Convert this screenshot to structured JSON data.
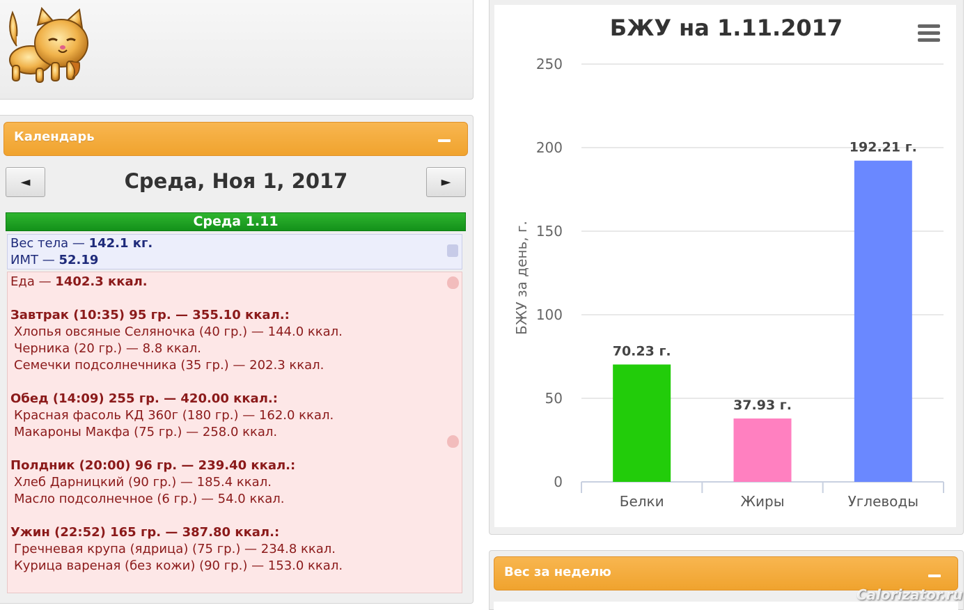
{
  "calendar": {
    "title": "Календарь",
    "prev_label": "◄",
    "next_label": "►",
    "date_title": "Среда, Ноя 1, 2017",
    "day_label": "Среда 1.11"
  },
  "body": {
    "weight_prefix": "Вес тела — ",
    "weight_value": "142.1 кг.",
    "bmi_prefix": "ИМТ — ",
    "bmi_value": "52.19"
  },
  "food": {
    "total_prefix": "Еда — ",
    "total_value": "1402.3 ккал.",
    "meals": [
      {
        "heading": "Завтрак (10:35) 95 гр. — 355.10 ккал.:",
        "items": [
          "Хлопья овсяные Селяночка (40 гр.) — 144.0 ккал.",
          "Черника (20 гр.) — 8.8 ккал.",
          "Семечки подсолнечника (35 гр.) — 202.3 ккал."
        ]
      },
      {
        "heading": "Обед (14:09) 255 гр. — 420.00 ккал.:",
        "items": [
          "Красная фасоль КД 360г (180 гр.) — 162.0 ккал.",
          "Макароны Макфа (75 гр.) — 258.0 ккал."
        ]
      },
      {
        "heading": "Полдник (20:00) 96 гр. — 239.40 ккал.:",
        "items": [
          "Хлеб Дарницкий (90 гр.) — 185.4 ккал.",
          "Масло подсолнечное (6 гр.) — 54.0 ккал."
        ]
      },
      {
        "heading": "Ужин (22:52) 165 гр. — 387.80 ккал.:",
        "items": [
          "Гречневая крупа (ядрица) (75 гр.) — 234.8 ккал.",
          "Курица вареная (без кожи) (90 гр.) — 153.0 ккал."
        ]
      }
    ]
  },
  "chart_data": {
    "type": "bar",
    "title": "БЖУ на 1.11.2017",
    "ylabel": "БЖУ за день, г.",
    "xlabel": "",
    "categories": [
      "Белки",
      "Жиры",
      "Углеводы"
    ],
    "values": [
      70.23,
      37.93,
      192.21
    ],
    "data_labels": [
      "70.23 г.",
      "37.93 г.",
      "192.21 г."
    ],
    "colors": [
      "#22cc0a",
      "#ff80c0",
      "#6a88ff"
    ],
    "ylim": [
      0,
      250
    ],
    "yticks": [
      0,
      50,
      100,
      150,
      200,
      250
    ],
    "grid": true,
    "legend": "none"
  },
  "week": {
    "title": "Вес за неделю"
  },
  "watermark": "Calorizator.ru"
}
